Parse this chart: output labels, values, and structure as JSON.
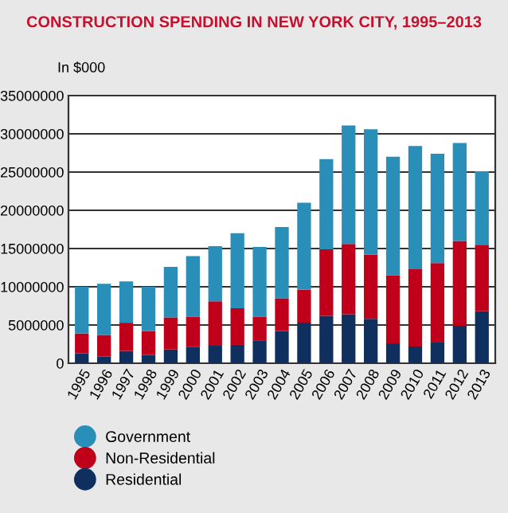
{
  "chart_data": {
    "type": "bar",
    "title": "CONSTRUCTION SPENDING IN NEW YORK CITY, 1995–2013",
    "ylabel": "In $000",
    "stacked": true,
    "categories": [
      "1995",
      "1996",
      "1997",
      "1998",
      "1999",
      "2000",
      "2001",
      "2002",
      "2003",
      "2004",
      "2005",
      "2006",
      "2007",
      "2008",
      "2009",
      "2010",
      "2011",
      "2012",
      "2013"
    ],
    "series": [
      {
        "name": "Residential",
        "color": "#0f2f5f",
        "values": [
          1300000,
          900000,
          1600000,
          1100000,
          1800000,
          2100000,
          2300000,
          2400000,
          3000000,
          4200000,
          5300000,
          6200000,
          6400000,
          5800000,
          2600000,
          2200000,
          2800000,
          4900000,
          6800000
        ]
      },
      {
        "name": "Non-Residential",
        "color": "#c0001a",
        "values": [
          2600000,
          2800000,
          3700000,
          3100000,
          4200000,
          4000000,
          5800000,
          4800000,
          3100000,
          4300000,
          4300000,
          8700000,
          9200000,
          8400000,
          8900000,
          10100000,
          10300000,
          11100000,
          8700000
        ]
      },
      {
        "name": "Government",
        "color": "#2a8fb8",
        "values": [
          6100000,
          6700000,
          5400000,
          5800000,
          6600000,
          7900000,
          7200000,
          9800000,
          9100000,
          9300000,
          11400000,
          11800000,
          15500000,
          16400000,
          15500000,
          16100000,
          14300000,
          12800000,
          9600000
        ]
      }
    ],
    "ylim": [
      0,
      35000000
    ],
    "yticks": [
      0,
      5000000,
      10000000,
      15000000,
      20000000,
      25000000,
      30000000,
      35000000
    ],
    "grid": "y",
    "legend": "bottom left"
  }
}
